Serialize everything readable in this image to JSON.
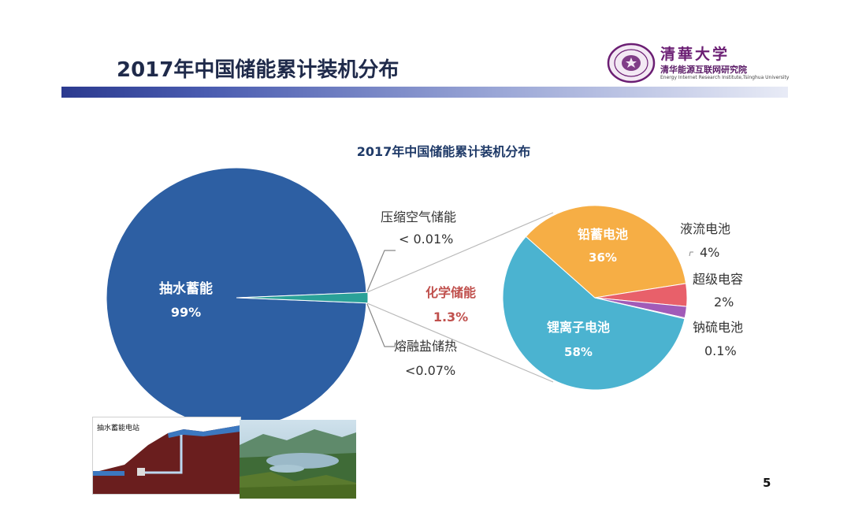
{
  "slide": {
    "title": "2017年中国储能累计装机分布",
    "page_number": "5"
  },
  "logo": {
    "calligraphy": "清華大学",
    "institute_cn": "清华能源互联网研究院",
    "institute_en": "Energy Internet Research Institute,Tsinghua University",
    "color": "#6b1e73"
  },
  "thumbnails": {
    "diagram_label": "抽水蓄能电站"
  },
  "chart_data": [
    {
      "type": "pie",
      "title": "2017年中国储能累计装机分布",
      "slices": [
        {
          "label": "抽水蓄能",
          "value_label": "99%",
          "value": 99,
          "color": "#2d5fa3"
        },
        {
          "label": "化学储能",
          "value_label": "1.3%",
          "value": 1.3,
          "color": "#2aa198",
          "exploded": true
        },
        {
          "label": "压缩空气储能",
          "value_label": "< 0.01%",
          "value": 0.01
        },
        {
          "label": "熔融盐储热",
          "value_label": "<0.07%",
          "value": 0.07
        }
      ]
    },
    {
      "type": "pie",
      "title": "化学储能",
      "slices": [
        {
          "label": "锂离子电池",
          "value_label": "58%",
          "value": 58,
          "color": "#4bb3d0"
        },
        {
          "label": "铅蓄电池",
          "value_label": "36%",
          "value": 36,
          "color": "#f6ae45"
        },
        {
          "label": "液流电池",
          "value_label": "4%",
          "value": 4,
          "color": "#e8606a"
        },
        {
          "label": "超级电容",
          "value_label": "2%",
          "value": 2,
          "color": "#a15bb8"
        },
        {
          "label": "钠硫电池",
          "value_label": "0.1%",
          "value": 0.1,
          "color": "#6a3d8e"
        }
      ]
    }
  ]
}
